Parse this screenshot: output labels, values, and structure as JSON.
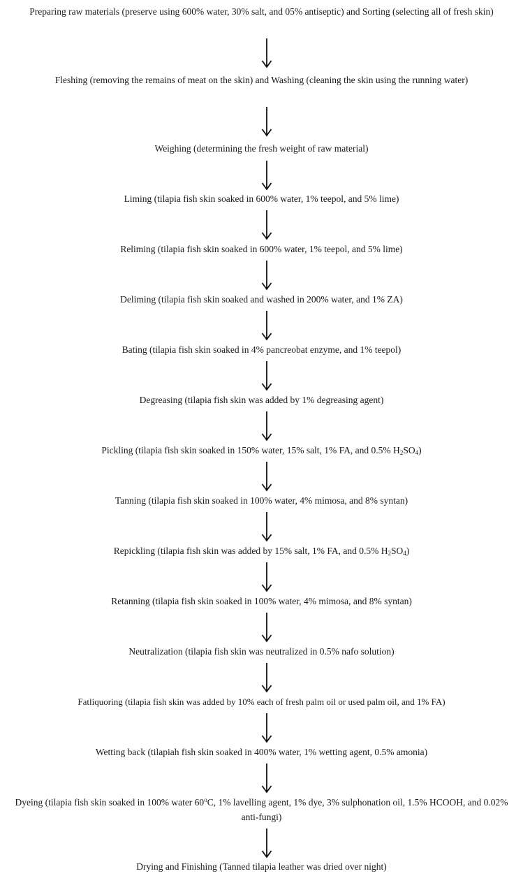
{
  "flowchart": {
    "steps": [
      "Preparing raw materials (preserve using 600% water, 30% salt, and 05% antiseptic) and Sorting (selecting all of fresh skin)",
      "Fleshing (removing the remains of meat on the skin) and Washing (cleaning the skin using the running water)",
      "Weighing (determining the fresh weight of raw material)",
      "Liming (tilapia fish skin soaked in 600% water, 1% teepol, and 5% lime)",
      "Reliming (tilapia fish skin soaked in 600% water, 1% teepol, and 5% lime)",
      "Deliming (tilapia fish skin soaked and washed in 200% water, and 1% ZA)",
      "Bating (tilapia fish skin soaked in 4% pancreobat enzyme, and 1% teepol)",
      "Degreasing (tilapia fish skin was added by 1% degreasing agent)",
      "Pickling (tilapia fish skin soaked in 150% water, 15% salt, 1% FA, and 0.5% H₂SO₄)",
      "Tanning (tilapia fish skin soaked in 100% water, 4% mimosa, and 8% syntan)",
      "Repickling (tilapia fish skin was added by 15% salt, 1% FA, and 0.5% H₂SO₄)",
      "Retanning (tilapia fish skin soaked in 100% water, 4% mimosa, and 8% syntan)",
      "Neutralization (tilapia fish skin was neutralized in 0.5% nafo solution)",
      "Fatliquoring (tilapia fish skin was added by 10% each of fresh palm oil or used palm oil, and 1% FA)",
      "Wetting back (tilapiah fish skin soaked in 400% water, 1% wetting agent, 0.5% amonia)",
      "Dyeing (tilapia fish skin soaked in 100% water 60ºC, 1% lavelling agent, 1% dye, 3% sulphonation oil, 1.5% HCOOH, and 0.02% anti-fungi)",
      "Drying and Finishing (Tanned tilapia leather was dried over night)"
    ]
  }
}
